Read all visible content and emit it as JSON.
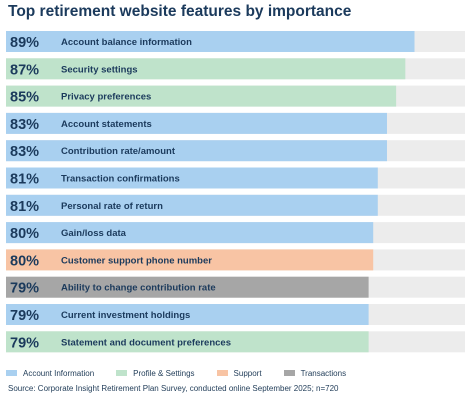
{
  "chart_data": {
    "type": "bar",
    "orientation": "horizontal",
    "title": "Top retirement website features by importance",
    "xlim": [
      0,
      100
    ],
    "categories": [
      "Account balance information",
      "Security settings",
      "Privacy preferences",
      "Account statements",
      "Contribution rate/amount",
      "Transaction confirmations",
      "Personal rate of return",
      "Gain/loss data",
      "Customer support phone number",
      "Ability to change contribution rate",
      "Current investment holdings",
      "Statement and document preferences"
    ],
    "values": [
      89,
      87,
      85,
      83,
      83,
      81,
      81,
      80,
      80,
      79,
      79,
      79
    ],
    "value_labels": [
      "89%",
      "87%",
      "85%",
      "83%",
      "83%",
      "81%",
      "81%",
      "80%",
      "80%",
      "79%",
      "79%",
      "79%"
    ],
    "groups": [
      "Account Information",
      "Profile & Settings",
      "Profile & Settings",
      "Account Information",
      "Account Information",
      "Account Information",
      "Account Information",
      "Account Information",
      "Support",
      "Transactions",
      "Account Information",
      "Profile & Settings"
    ],
    "legend": {
      "position": "bottom",
      "entries": [
        {
          "name": "Account Information",
          "color": "#a9d0f0"
        },
        {
          "name": "Profile & Settings",
          "color": "#bfe3cb"
        },
        {
          "name": "Support",
          "color": "#f8c4a4"
        },
        {
          "name": "Transactions",
          "color": "#a6a6a6"
        }
      ]
    },
    "track_color": "#ececec",
    "grid": false
  },
  "source": "Source: Corporate Insight Retirement Plan Survey, conducted online September 2025; n=720"
}
